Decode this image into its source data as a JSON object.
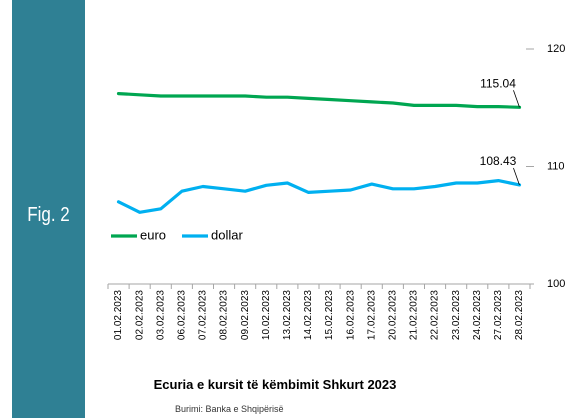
{
  "figure": {
    "label": "Fig. 2"
  },
  "colors": {
    "panel": "#2f8094",
    "euro": "#00a651",
    "dollar": "#00b0f0"
  },
  "chart_data": {
    "type": "line",
    "title": "Ecuria e kursit të këmbimit Shkurt 2023",
    "source": "Burimi: Banka e Shqipërisë",
    "x": [
      "01.02.2023",
      "02.02.2023",
      "03.02.2023",
      "06.02.2023",
      "07.02.2023",
      "08.02.2023",
      "09.02.2023",
      "10.02.2023",
      "13.02.2023",
      "14.02.2023",
      "15.02.2023",
      "16.02.2023",
      "17.02.2023",
      "20.02.2023",
      "21.02.2023",
      "22.02.2023",
      "23.02.2023",
      "24.02.2023",
      "27.02.2023",
      "28.02.2023"
    ],
    "series": [
      {
        "name": "euro",
        "color": "#00a651",
        "values": [
          116.2,
          116.1,
          116.0,
          116.0,
          116.0,
          116.0,
          116.0,
          115.9,
          115.9,
          115.8,
          115.7,
          115.6,
          115.5,
          115.4,
          115.2,
          115.2,
          115.2,
          115.1,
          115.1,
          115.04
        ]
      },
      {
        "name": "dollar",
        "color": "#00b0f0",
        "values": [
          107.0,
          106.1,
          106.4,
          107.9,
          108.3,
          108.1,
          107.9,
          108.4,
          108.6,
          107.8,
          107.9,
          108.0,
          108.5,
          108.1,
          108.1,
          108.3,
          108.6,
          108.6,
          108.8,
          108.43
        ]
      }
    ],
    "y_right_ticks": [
      100,
      110,
      120
    ],
    "ylim": [
      100,
      120
    ],
    "data_labels": [
      "115.04",
      "108.43"
    ],
    "legend": "left"
  }
}
